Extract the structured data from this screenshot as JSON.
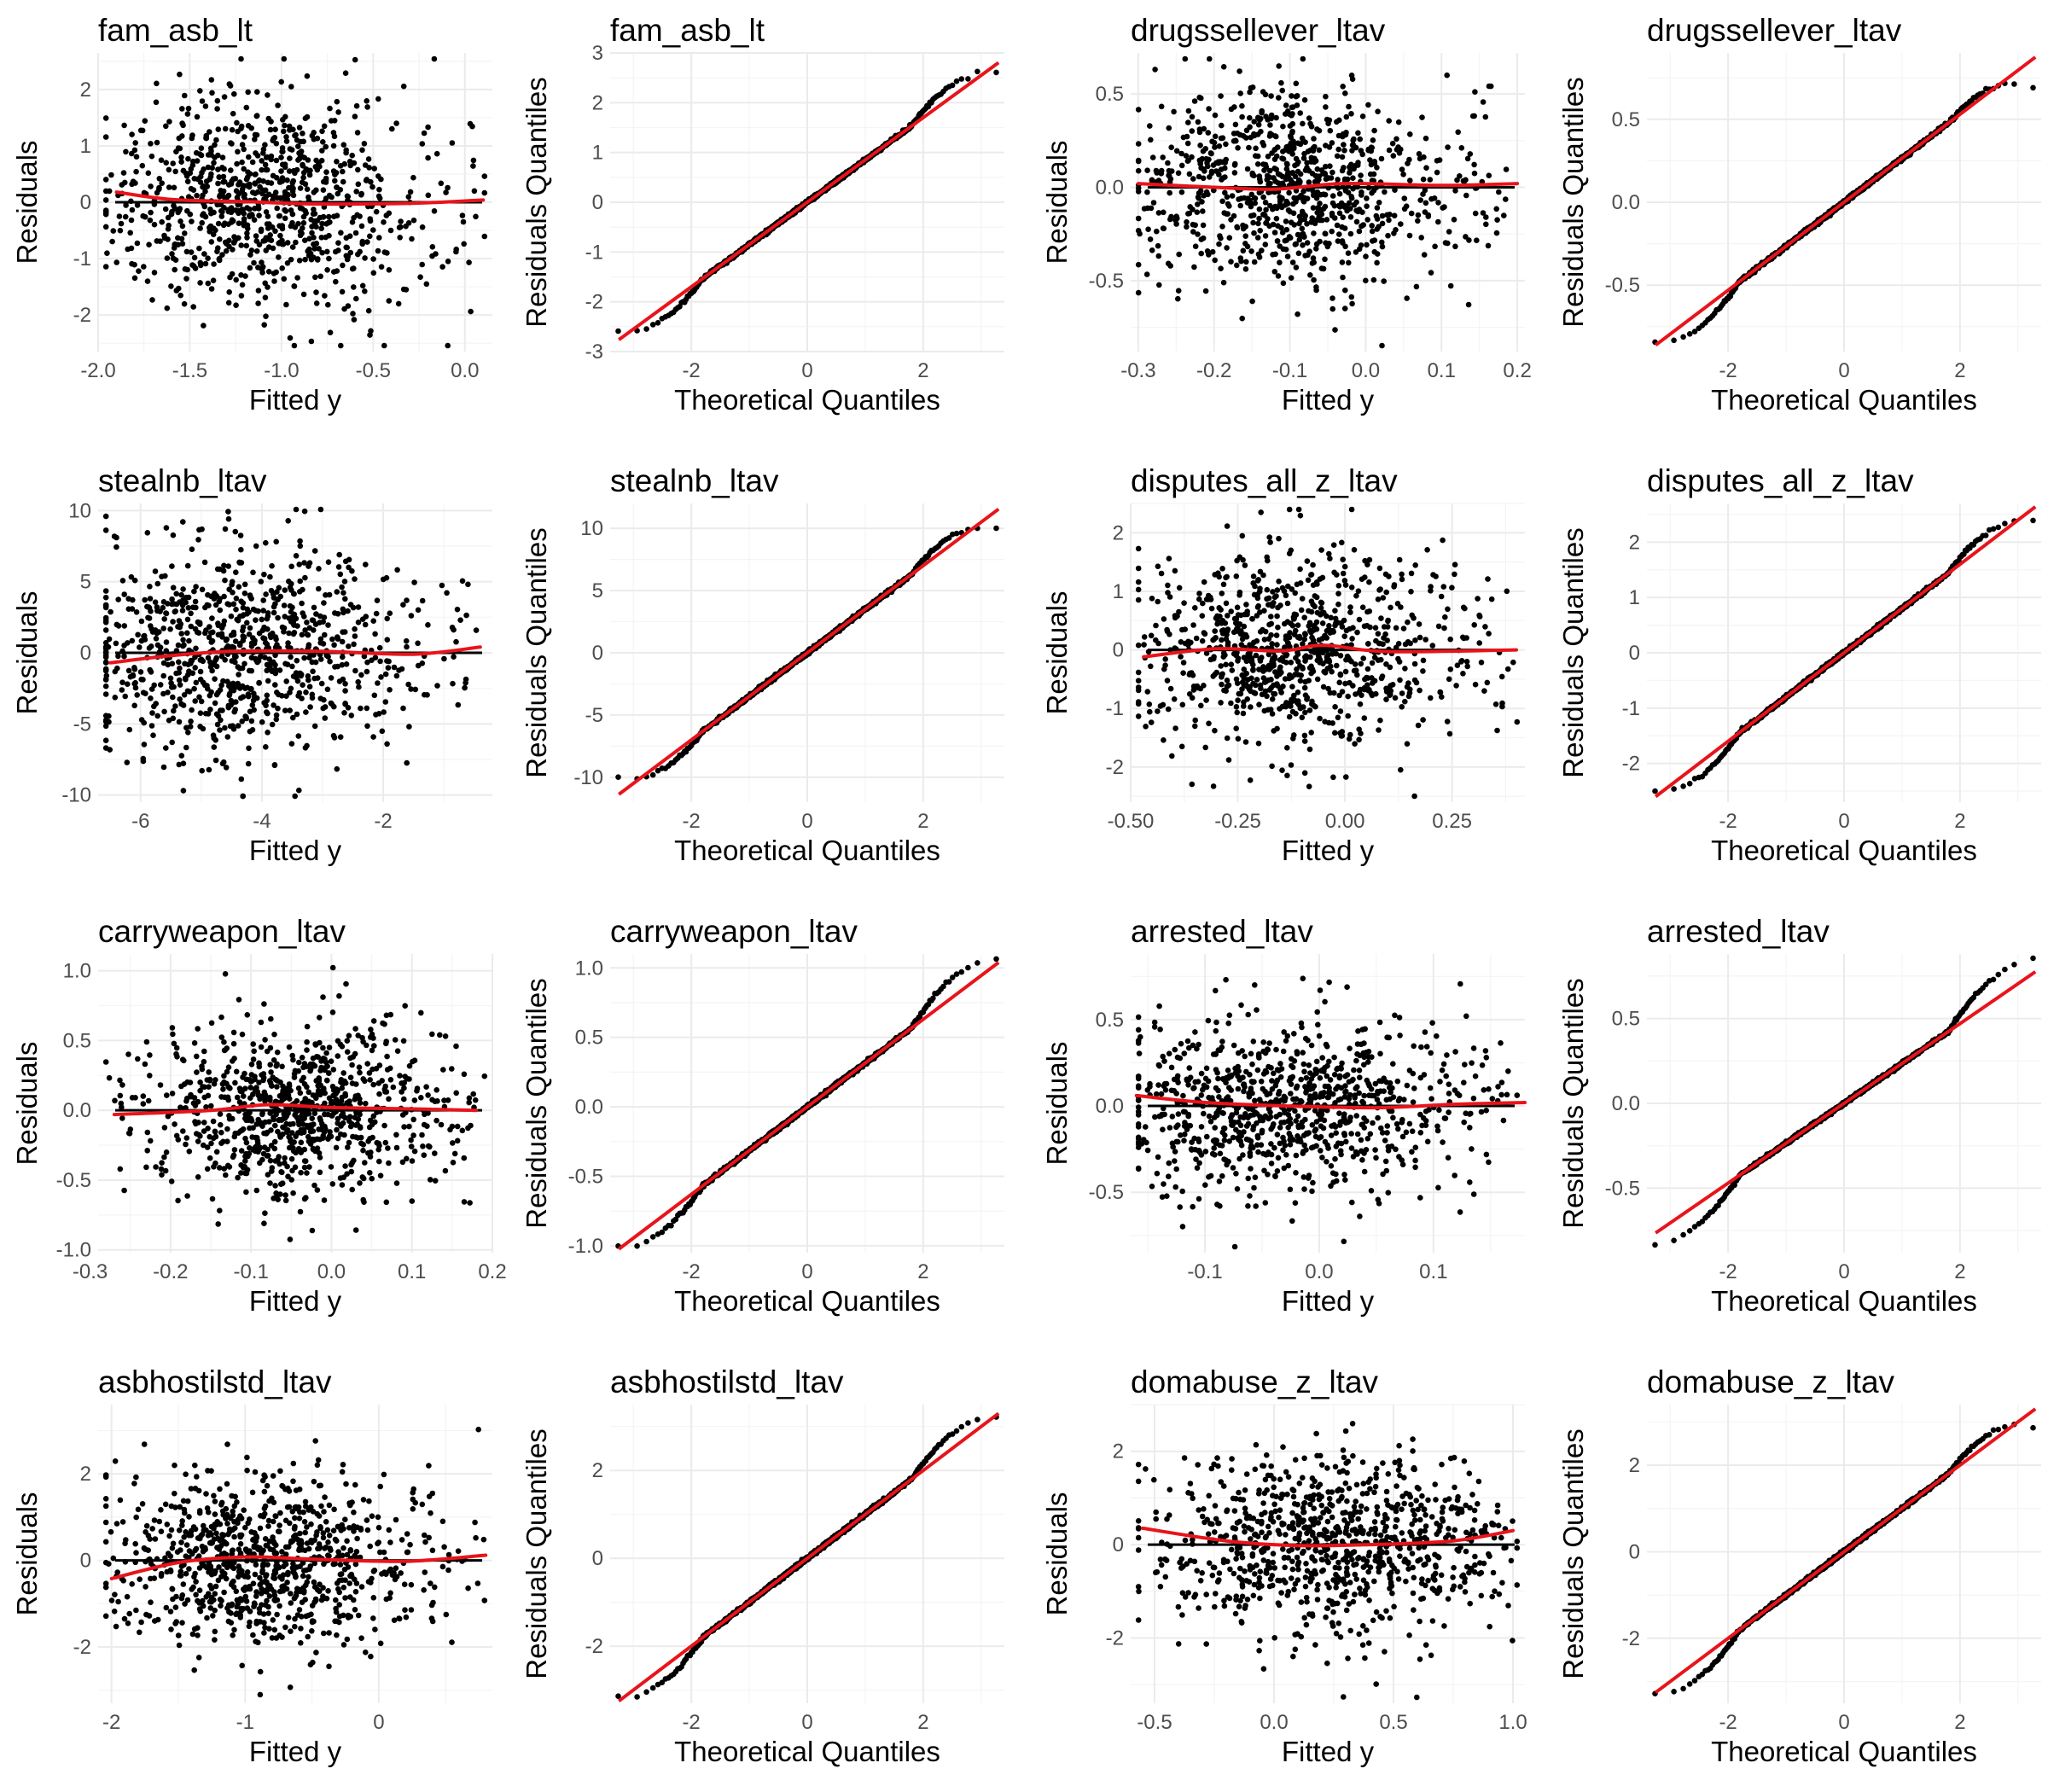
{
  "figure": {
    "rows": 4,
    "cols": 4,
    "background": "#ffffff"
  },
  "colors": {
    "points": "#000000",
    "smooth": "#e8141b",
    "refline": "#e8141b",
    "hline": "#000000",
    "grid_major": "#ebebeb",
    "grid_minor": "#f4f4f4"
  },
  "chart_data": [
    {
      "id": "p1",
      "type": "scatter",
      "title": "fam_asb_lt",
      "xlabel": "Fitted y",
      "ylabel": "Residuals",
      "xlim": [
        -2.0,
        0.15
      ],
      "ylim": [
        -2.65,
        2.65
      ],
      "xticks": [
        -2.0,
        -1.5,
        -1.0,
        -0.5,
        0.0
      ],
      "xtick_labels": [
        "-2.0",
        "-1.5",
        "-1.0",
        "-0.5",
        "0.0"
      ],
      "yticks": [
        -2,
        -1,
        0,
        1,
        2
      ],
      "ytick_labels": [
        "-2",
        "-1",
        "0",
        "1",
        "2"
      ],
      "x_mean": -1.1,
      "x_sd": 0.42,
      "y_sd": 0.9,
      "n": 900,
      "seed": 11,
      "smooth": [
        [
          -1.9,
          0.18
        ],
        [
          -1.6,
          0.05
        ],
        [
          -1.2,
          0.01
        ],
        [
          -0.8,
          -0.03
        ],
        [
          -0.3,
          -0.02
        ],
        [
          0.1,
          0.04
        ]
      ]
    },
    {
      "id": "p2",
      "type": "qq",
      "title": "fam_asb_lt",
      "xlabel": "Theoretical Quantiles",
      "ylabel": "Residuals Quantiles",
      "xlim": [
        -3.4,
        3.4
      ],
      "ylim": [
        -3.0,
        3.0
      ],
      "xticks": [
        -2,
        0,
        2
      ],
      "xtick_labels": [
        "-2",
        "0",
        "2"
      ],
      "yticks": [
        -3,
        -2,
        -1,
        0,
        1,
        2,
        3
      ],
      "ytick_labels": [
        "-3",
        "-2",
        "-1",
        "0",
        "1",
        "2",
        "3"
      ],
      "line": {
        "intercept": 0.0,
        "slope": 0.85
      },
      "tails": {
        "lo": [
          -3.2,
          -2.6
        ],
        "hi": [
          3.2,
          2.6
        ]
      },
      "n": 900
    },
    {
      "id": "p3",
      "type": "scatter",
      "title": "drugssellever_ltav",
      "xlabel": "Fitted y",
      "ylabel": "Residuals",
      "xlim": [
        -0.31,
        0.21
      ],
      "ylim": [
        -0.88,
        0.72
      ],
      "xticks": [
        -0.3,
        -0.2,
        -0.1,
        0.0,
        0.1,
        0.2
      ],
      "xtick_labels": [
        "-0.3",
        "-0.2",
        "-0.1",
        "0.0",
        "0.1",
        "0.2"
      ],
      "yticks": [
        -0.5,
        0.0,
        0.5
      ],
      "ytick_labels": [
        "-0.5",
        "0.0",
        "0.5"
      ],
      "x_mean": -0.11,
      "x_sd": 0.09,
      "y_sd": 0.26,
      "n": 900,
      "seed": 23,
      "smooth": [
        [
          -0.3,
          0.02
        ],
        [
          -0.2,
          0.0
        ],
        [
          -0.12,
          -0.01
        ],
        [
          -0.03,
          0.02
        ],
        [
          0.1,
          0.01
        ],
        [
          0.2,
          0.02
        ]
      ]
    },
    {
      "id": "p4",
      "type": "qq",
      "title": "drugssellever_ltav",
      "xlabel": "Theoretical Quantiles",
      "ylabel": "Residuals Quantiles",
      "xlim": [
        -3.4,
        3.4
      ],
      "ylim": [
        -0.9,
        0.9
      ],
      "xticks": [
        -2,
        0,
        2
      ],
      "xtick_labels": [
        "-2",
        "0",
        "2"
      ],
      "yticks": [
        -0.5,
        0.0,
        0.5
      ],
      "ytick_labels": [
        "-0.5",
        "0.0",
        "0.5"
      ],
      "line": {
        "intercept": 0.0,
        "slope": 0.265
      },
      "tails": {
        "lo": [
          -3.2,
          -0.84
        ],
        "hi": [
          3.2,
          0.7
        ]
      },
      "n": 900
    },
    {
      "id": "p5",
      "type": "scatter",
      "title": "stealnb_ltav",
      "xlabel": "Fitted y",
      "ylabel": "Residuals",
      "xlim": [
        -6.7,
        -0.2
      ],
      "ylim": [
        -10.5,
        10.5
      ],
      "xticks": [
        -6,
        -4,
        -2
      ],
      "xtick_labels": [
        "-6",
        "-4",
        "-2"
      ],
      "yticks": [
        -10,
        -5,
        0,
        5,
        10
      ],
      "ytick_labels": [
        "-10",
        "-5",
        "0",
        "5",
        "10"
      ],
      "x_mean": -4.3,
      "x_sd": 1.3,
      "y_sd": 3.6,
      "n": 900,
      "seed": 37,
      "smooth": [
        [
          -6.5,
          -0.7
        ],
        [
          -5.5,
          -0.2
        ],
        [
          -4.5,
          0.1
        ],
        [
          -3.0,
          0.1
        ],
        [
          -1.5,
          -0.1
        ],
        [
          -0.4,
          0.4
        ]
      ]
    },
    {
      "id": "p6",
      "type": "qq",
      "title": "stealnb_ltav",
      "xlabel": "Theoretical Quantiles",
      "ylabel": "Residuals Quantiles",
      "xlim": [
        -3.4,
        3.4
      ],
      "ylim": [
        -12.0,
        12.0
      ],
      "xticks": [
        -2,
        0,
        2
      ],
      "xtick_labels": [
        "-2",
        "0",
        "2"
      ],
      "yticks": [
        -10,
        -5,
        0,
        5,
        10
      ],
      "ytick_labels": [
        "-10",
        "-5",
        "0",
        "5",
        "10"
      ],
      "line": {
        "intercept": 0.0,
        "slope": 3.5
      },
      "tails": {
        "lo": [
          -3.2,
          -10.0
        ],
        "hi": [
          3.2,
          10.0
        ]
      },
      "n": 900
    },
    {
      "id": "p7",
      "type": "scatter",
      "title": "disputes_all_z_ltav",
      "xlabel": "Fitted y",
      "ylabel": "Residuals",
      "xlim": [
        -0.5,
        0.42
      ],
      "ylim": [
        -2.6,
        2.5
      ],
      "xticks": [
        -0.5,
        -0.25,
        0.0,
        0.25
      ],
      "xtick_labels": [
        "-0.50",
        "-0.25",
        "0.00",
        "0.25"
      ],
      "yticks": [
        -2,
        -1,
        0,
        1,
        2
      ],
      "ytick_labels": [
        "-2",
        "-1",
        "0",
        "1",
        "2"
      ],
      "x_mean": -0.12,
      "x_sd": 0.17,
      "y_sd": 0.8,
      "n": 900,
      "seed": 41,
      "smooth": [
        [
          -0.47,
          -0.12
        ],
        [
          -0.3,
          0.02
        ],
        [
          -0.15,
          -0.02
        ],
        [
          -0.05,
          0.08
        ],
        [
          0.1,
          -0.03
        ],
        [
          0.4,
          0.0
        ]
      ]
    },
    {
      "id": "p8",
      "type": "qq",
      "title": "disputes_all_z_ltav",
      "xlabel": "Theoretical Quantiles",
      "ylabel": "Residuals Quantiles",
      "xlim": [
        -3.4,
        3.4
      ],
      "ylim": [
        -2.7,
        2.7
      ],
      "xticks": [
        -2,
        0,
        2
      ],
      "xtick_labels": [
        "-2",
        "0",
        "2"
      ],
      "yticks": [
        -2,
        -1,
        0,
        1,
        2
      ],
      "ytick_labels": [
        "-2",
        "-1",
        "0",
        "1",
        "2"
      ],
      "line": {
        "intercept": 0.0,
        "slope": 0.8
      },
      "tails": {
        "lo": [
          -3.2,
          -2.5
        ],
        "hi": [
          3.2,
          2.4
        ]
      },
      "n": 900
    },
    {
      "id": "p9",
      "type": "scatter",
      "title": "carryweapon_ltav",
      "xlabel": "Fitted y",
      "ylabel": "Residuals",
      "xlim": [
        -0.29,
        0.2
      ],
      "ylim": [
        -1.02,
        1.12
      ],
      "xticks": [
        -0.3,
        -0.2,
        -0.1,
        0.0,
        0.1,
        0.2
      ],
      "xtick_labels": [
        "-0.3",
        "-0.2",
        "-0.1",
        "0.0",
        "0.1",
        "0.2"
      ],
      "yticks": [
        -1.0,
        -0.5,
        0.0,
        0.5,
        1.0
      ],
      "ytick_labels": [
        "-1.0",
        "-0.5",
        "0.0",
        "0.5",
        "1.0"
      ],
      "x_mean": -0.04,
      "x_sd": 0.08,
      "y_sd": 0.3,
      "n": 900,
      "seed": 53,
      "smooth": [
        [
          -0.27,
          -0.03
        ],
        [
          -0.15,
          0.0
        ],
        [
          -0.08,
          0.04
        ],
        [
          0.0,
          0.02
        ],
        [
          0.1,
          0.01
        ],
        [
          0.18,
          0.0
        ]
      ]
    },
    {
      "id": "p10",
      "type": "qq",
      "title": "carryweapon_ltav",
      "xlabel": "Theoretical Quantiles",
      "ylabel": "Residuals Quantiles",
      "xlim": [
        -3.4,
        3.4
      ],
      "ylim": [
        -1.05,
        1.1
      ],
      "xticks": [
        -2,
        0,
        2
      ],
      "xtick_labels": [
        "-2",
        "0",
        "2"
      ],
      "yticks": [
        -1.0,
        -0.5,
        0.0,
        0.5,
        1.0
      ],
      "ytick_labels": [
        "-1.0",
        "-0.5",
        "0.0",
        "0.5",
        "1.0"
      ],
      "line": {
        "intercept": 0.0,
        "slope": 0.315
      },
      "tails": {
        "lo": [
          -3.2,
          -1.0
        ],
        "hi": [
          3.2,
          1.06
        ]
      },
      "n": 900
    },
    {
      "id": "p11",
      "type": "scatter",
      "title": "arrested_ltav",
      "xlabel": "Fitted y",
      "ylabel": "Residuals",
      "xlim": [
        -0.165,
        0.18
      ],
      "ylim": [
        -0.85,
        0.88
      ],
      "xticks": [
        -0.1,
        0.0,
        0.1
      ],
      "xtick_labels": [
        "-0.1",
        "0.0",
        "0.1"
      ],
      "yticks": [
        -0.5,
        0.0,
        0.5
      ],
      "ytick_labels": [
        "-0.5",
        "0.0",
        "0.5"
      ],
      "x_mean": -0.03,
      "x_sd": 0.07,
      "y_sd": 0.25,
      "n": 900,
      "seed": 67,
      "smooth": [
        [
          -0.16,
          0.06
        ],
        [
          -0.1,
          0.02
        ],
        [
          -0.03,
          0.0
        ],
        [
          0.05,
          -0.01
        ],
        [
          0.12,
          0.01
        ],
        [
          0.18,
          0.02
        ]
      ]
    },
    {
      "id": "p12",
      "type": "qq",
      "title": "arrested_ltav",
      "xlabel": "Theoretical Quantiles",
      "ylabel": "Residuals Quantiles",
      "xlim": [
        -3.4,
        3.4
      ],
      "ylim": [
        -0.88,
        0.88
      ],
      "xticks": [
        -2,
        0,
        2
      ],
      "xtick_labels": [
        "-2",
        "0",
        "2"
      ],
      "yticks": [
        -0.5,
        0.0,
        0.5
      ],
      "ytick_labels": [
        "-0.5",
        "0.0",
        "0.5"
      ],
      "line": {
        "intercept": 0.0,
        "slope": 0.235
      },
      "tails": {
        "lo": [
          -3.2,
          -0.83
        ],
        "hi": [
          3.2,
          0.85
        ]
      },
      "n": 900
    },
    {
      "id": "p13",
      "type": "scatter",
      "title": "asbhostilstd_ltav",
      "xlabel": "Fitted y",
      "ylabel": "Residuals",
      "xlim": [
        -2.1,
        0.85
      ],
      "ylim": [
        -3.3,
        3.6
      ],
      "xticks": [
        -2,
        -1,
        0
      ],
      "xtick_labels": [
        "-2",
        "-1",
        "0"
      ],
      "yticks": [
        -2,
        0,
        2
      ],
      "ytick_labels": [
        "-2",
        "0",
        "2"
      ],
      "x_mean": -0.85,
      "x_sd": 0.55,
      "y_sd": 1.0,
      "n": 900,
      "seed": 71,
      "smooth": [
        [
          -2.0,
          -0.42
        ],
        [
          -1.5,
          -0.05
        ],
        [
          -1.0,
          0.08
        ],
        [
          -0.5,
          0.03
        ],
        [
          0.2,
          -0.02
        ],
        [
          0.8,
          0.12
        ]
      ]
    },
    {
      "id": "p14",
      "type": "qq",
      "title": "asbhostilstd_ltav",
      "xlabel": "Theoretical Quantiles",
      "ylabel": "Residuals Quantiles",
      "xlim": [
        -3.4,
        3.4
      ],
      "ylim": [
        -3.3,
        3.5
      ],
      "xticks": [
        -2,
        0,
        2
      ],
      "xtick_labels": [
        "-2",
        "0",
        "2"
      ],
      "yticks": [
        -2,
        0,
        2
      ],
      "ytick_labels": [
        "-2",
        "0",
        "2"
      ],
      "line": {
        "intercept": 0.0,
        "slope": 1.0
      },
      "tails": {
        "lo": [
          -3.2,
          -3.15
        ],
        "hi": [
          3.2,
          3.2
        ]
      },
      "n": 900
    },
    {
      "id": "p15",
      "type": "scatter",
      "title": "domabuse_z_ltav",
      "xlabel": "Fitted y",
      "ylabel": "Residuals",
      "xlim": [
        -0.6,
        1.05
      ],
      "ylim": [
        -3.4,
        3.0
      ],
      "xticks": [
        -0.5,
        0.0,
        0.5,
        1.0
      ],
      "xtick_labels": [
        "-0.5",
        "0.0",
        "0.5",
        "1.0"
      ],
      "yticks": [
        -2,
        0,
        2
      ],
      "ytick_labels": [
        "-2",
        "0",
        "2"
      ],
      "x_mean": 0.25,
      "x_sd": 0.32,
      "y_sd": 0.95,
      "n": 900,
      "seed": 89,
      "smooth": [
        [
          -0.55,
          0.35
        ],
        [
          -0.2,
          0.08
        ],
        [
          0.1,
          -0.02
        ],
        [
          0.4,
          0.0
        ],
        [
          0.75,
          0.08
        ],
        [
          1.0,
          0.3
        ]
      ]
    },
    {
      "id": "p16",
      "type": "qq",
      "title": "domabuse_z_ltav",
      "xlabel": "Theoretical Quantiles",
      "ylabel": "Residuals Quantiles",
      "xlim": [
        -3.4,
        3.4
      ],
      "ylim": [
        -3.5,
        3.4
      ],
      "xticks": [
        -2,
        0,
        2
      ],
      "xtick_labels": [
        "-2",
        "0",
        "2"
      ],
      "yticks": [
        -2,
        0,
        2
      ],
      "ytick_labels": [
        "-2",
        "0",
        "2"
      ],
      "line": {
        "intercept": 0.0,
        "slope": 1.0
      },
      "tails": {
        "lo": [
          -3.2,
          -3.3
        ],
        "hi": [
          3.2,
          2.9
        ]
      },
      "n": 900
    }
  ]
}
